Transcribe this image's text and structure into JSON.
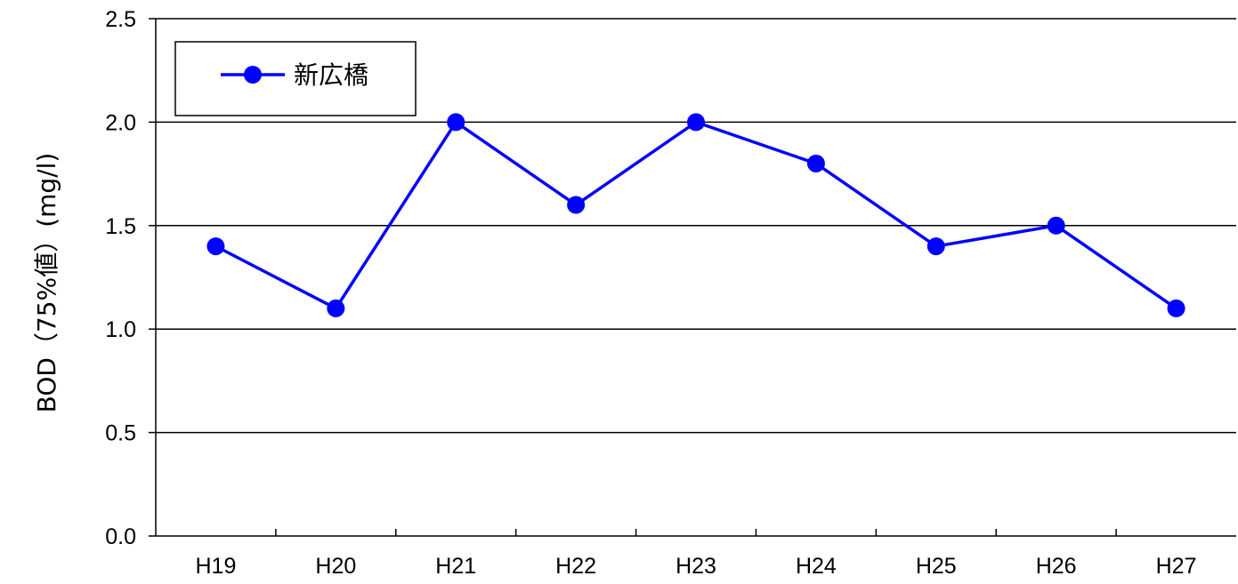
{
  "chart_data": {
    "type": "line",
    "title": "",
    "xlabel": "",
    "ylabel": "BOD（75%値）(mg/l)",
    "categories": [
      "H19",
      "H20",
      "H21",
      "H22",
      "H23",
      "H24",
      "H25",
      "H26",
      "H27"
    ],
    "series": [
      {
        "name": "新広橋",
        "color": "#0000ff",
        "values": [
          1.4,
          1.1,
          2.0,
          1.6,
          2.0,
          1.8,
          1.4,
          1.5,
          1.1
        ]
      }
    ],
    "ylim": [
      0,
      2.5
    ],
    "yticks": [
      "0.0",
      "0.5",
      "1.0",
      "1.5",
      "2.0",
      "2.5"
    ],
    "grid": true,
    "legend_position": "top-left"
  }
}
